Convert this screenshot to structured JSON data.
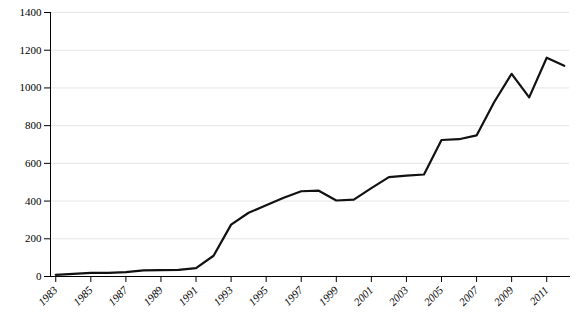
{
  "chart_data": {
    "type": "line",
    "x": [
      1983,
      1984,
      1985,
      1986,
      1987,
      1988,
      1989,
      1990,
      1991,
      1992,
      1993,
      1994,
      1995,
      1996,
      1997,
      1998,
      1999,
      2000,
      2001,
      2002,
      2003,
      2004,
      2005,
      2006,
      2007,
      2008,
      2009,
      2010,
      2011,
      2012
    ],
    "values": [
      9,
      14,
      19,
      19,
      23,
      32,
      34,
      35,
      44,
      110,
      275,
      338,
      378,
      418,
      452,
      455,
      403,
      408,
      469,
      527,
      535,
      541,
      724,
      728,
      748,
      924,
      1075,
      950,
      1160,
      1117
    ],
    "color": "#111111",
    "xlim": [
      1982.7,
      2012.3
    ],
    "xticks": [
      1983,
      1985,
      1987,
      1989,
      1991,
      1993,
      1995,
      1997,
      1999,
      2001,
      2003,
      2005,
      2007,
      2009,
      2011
    ],
    "ylim": [
      0,
      1400
    ],
    "yticks": [
      0,
      200,
      400,
      600,
      800,
      1000,
      1200,
      1400
    ],
    "grid": "y"
  }
}
